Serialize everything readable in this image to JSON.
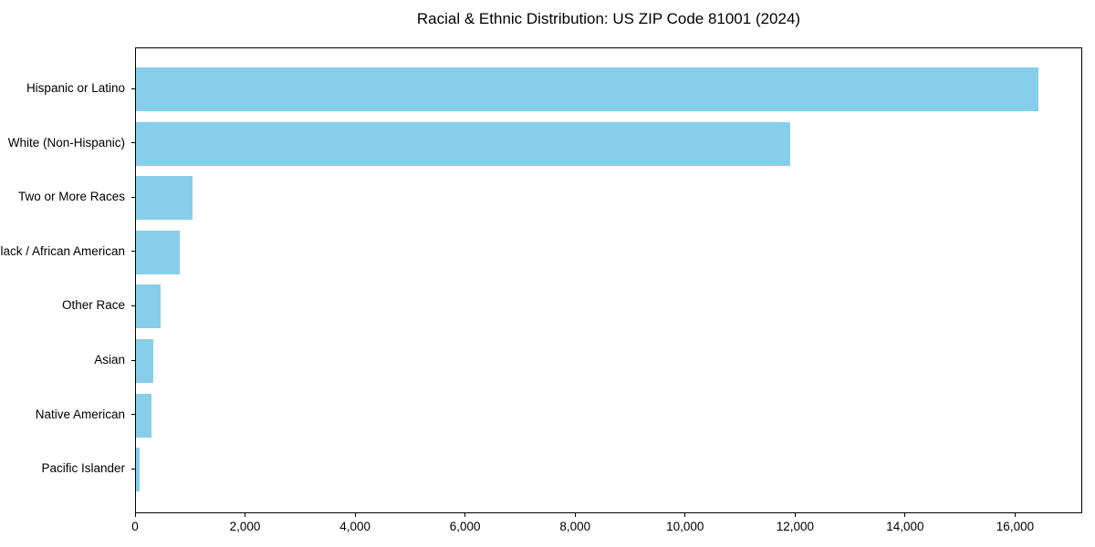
{
  "title": "Racial & Ethnic Distribution: US ZIP Code 81001 (2024)",
  "chart_data": {
    "type": "bar",
    "orientation": "horizontal",
    "title": "Racial & Ethnic Distribution: US ZIP Code 81001 (2024)",
    "xlabel": "",
    "ylabel": "",
    "categories": [
      "Hispanic or Latino",
      "White (Non-Hispanic)",
      "Two or More Races",
      "Black / African American",
      "Other Race",
      "Asian",
      "Native American",
      "Pacific Islander"
    ],
    "values": [
      16400,
      11900,
      1020,
      800,
      440,
      320,
      280,
      60
    ],
    "xlim": [
      0,
      17220
    ],
    "x_ticks": [
      0,
      2000,
      4000,
      6000,
      8000,
      10000,
      12000,
      14000,
      16000
    ],
    "x_tick_labels": [
      "0",
      "2,000",
      "4,000",
      "6,000",
      "8,000",
      "10,000",
      "12,000",
      "14,000",
      "16,000"
    ],
    "bar_color": "#87CEEB",
    "grid": false,
    "legend": null,
    "background_color": "#ffffff",
    "border_color": "#000000"
  }
}
